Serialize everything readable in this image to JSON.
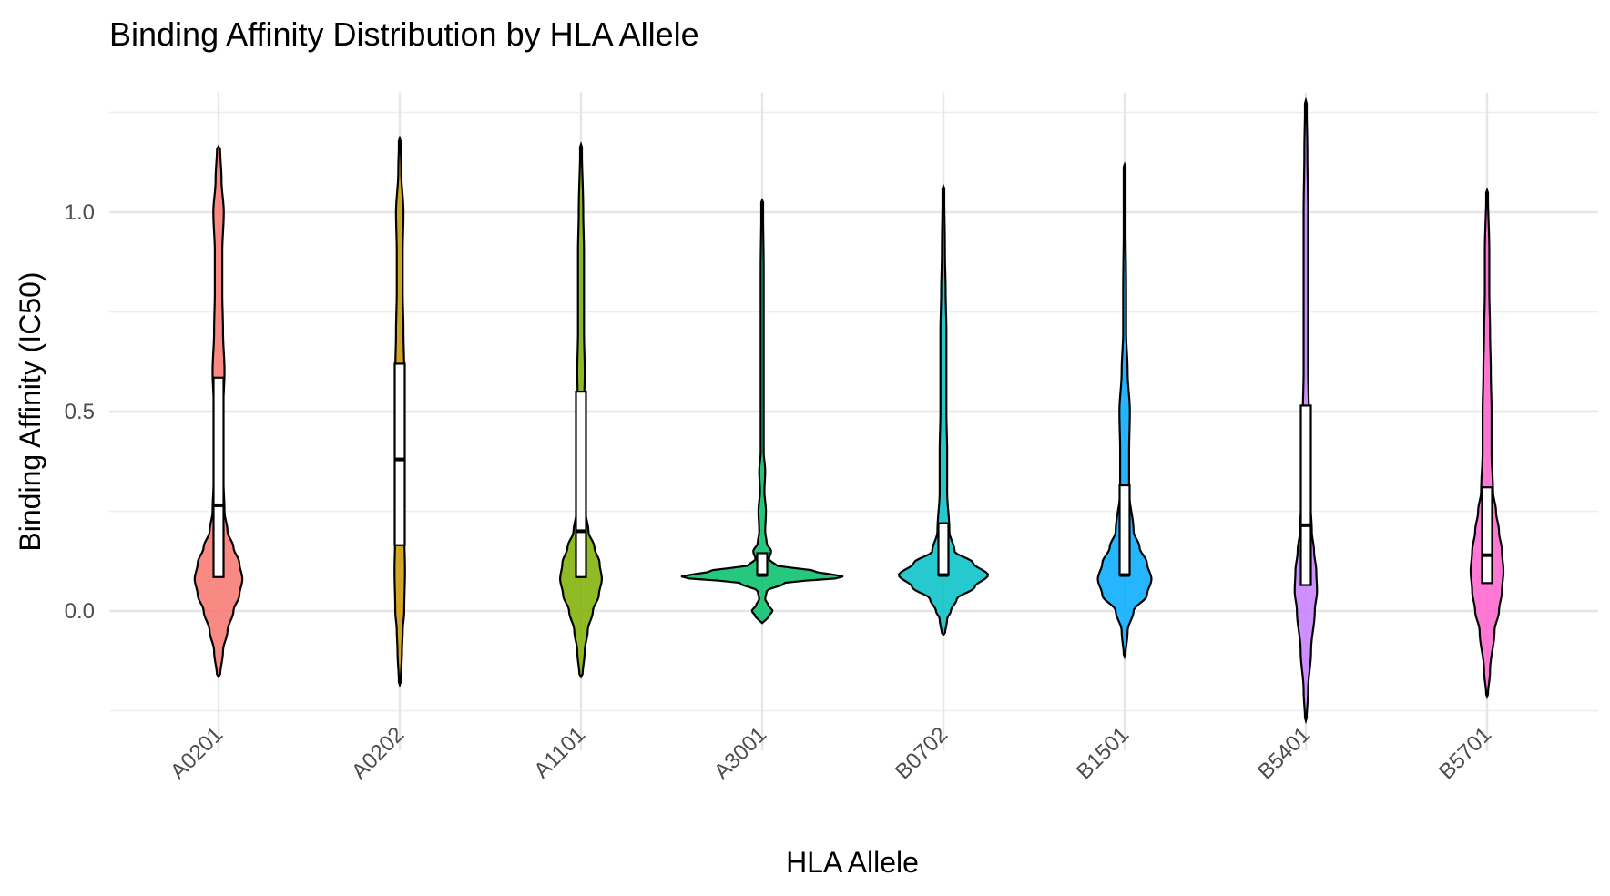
{
  "chart_data": {
    "type": "violin",
    "title": "Binding Affinity Distribution by HLA Allele",
    "xlabel": "HLA Allele",
    "ylabel": "Binding Affinity (IC50)",
    "ylim": [
      -0.35,
      1.35
    ],
    "yticks": [
      0.0,
      0.5,
      1.0
    ],
    "ytick_labels": [
      "0.0",
      "0.5",
      "1.0"
    ],
    "grid": true,
    "categories": [
      "A0201",
      "A0202",
      "A1101",
      "A3001",
      "B0702",
      "B1501",
      "B5401",
      "B5701"
    ],
    "colors": [
      "#F8766D",
      "#CD9600",
      "#7CAE00",
      "#00BE67",
      "#00BFC4",
      "#00A9FF",
      "#C77CFF",
      "#FF61CC"
    ],
    "series": [
      {
        "category": "A0201",
        "violin_min": -0.165,
        "violin_max": 1.165,
        "box": {
          "q1": 0.085,
          "median": 0.265,
          "q3": 0.585
        },
        "density": [
          [
            -0.165,
            0.002
          ],
          [
            -0.1,
            0.006
          ],
          [
            -0.05,
            0.012
          ],
          [
            0.0,
            0.02
          ],
          [
            0.04,
            0.028
          ],
          [
            0.08,
            0.032
          ],
          [
            0.12,
            0.028
          ],
          [
            0.16,
            0.02
          ],
          [
            0.2,
            0.012
          ],
          [
            0.25,
            0.008
          ],
          [
            0.35,
            0.006
          ],
          [
            0.5,
            0.006
          ],
          [
            0.6,
            0.008
          ],
          [
            0.7,
            0.006
          ],
          [
            0.8,
            0.005
          ],
          [
            0.9,
            0.005
          ],
          [
            1.0,
            0.007
          ],
          [
            1.08,
            0.004
          ],
          [
            1.165,
            0.002
          ]
        ]
      },
      {
        "category": "A0202",
        "violin_min": -0.185,
        "violin_max": 1.185,
        "box": {
          "q1": 0.165,
          "median": 0.38,
          "q3": 0.62
        },
        "density": [
          [
            -0.185,
            0.001
          ],
          [
            -0.1,
            0.003
          ],
          [
            -0.05,
            0.004
          ],
          [
            0.0,
            0.006
          ],
          [
            0.1,
            0.007
          ],
          [
            0.2,
            0.006
          ],
          [
            0.3,
            0.005
          ],
          [
            0.4,
            0.005
          ],
          [
            0.5,
            0.005
          ],
          [
            0.6,
            0.006
          ],
          [
            0.7,
            0.005
          ],
          [
            0.8,
            0.004
          ],
          [
            0.9,
            0.004
          ],
          [
            1.0,
            0.005
          ],
          [
            1.1,
            0.002
          ],
          [
            1.185,
            0.001
          ]
        ]
      },
      {
        "category": "A1101",
        "violin_min": -0.165,
        "violin_max": 1.17,
        "box": {
          "q1": 0.085,
          "median": 0.2,
          "q3": 0.55
        },
        "density": [
          [
            -0.165,
            0.002
          ],
          [
            -0.1,
            0.005
          ],
          [
            -0.05,
            0.009
          ],
          [
            0.0,
            0.016
          ],
          [
            0.04,
            0.024
          ],
          [
            0.08,
            0.028
          ],
          [
            0.12,
            0.025
          ],
          [
            0.16,
            0.018
          ],
          [
            0.2,
            0.01
          ],
          [
            0.25,
            0.006
          ],
          [
            0.35,
            0.004
          ],
          [
            0.5,
            0.004
          ],
          [
            0.6,
            0.005
          ],
          [
            0.7,
            0.004
          ],
          [
            0.8,
            0.004
          ],
          [
            0.9,
            0.004
          ],
          [
            1.0,
            0.003
          ],
          [
            1.17,
            0.001
          ]
        ]
      },
      {
        "category": "A3001",
        "violin_min": -0.03,
        "violin_max": 1.03,
        "box": {
          "q1": 0.09,
          "median": 0.09,
          "q3": 0.145
        },
        "density": [
          [
            -0.03,
            0.002
          ],
          [
            -0.01,
            0.01
          ],
          [
            0.0,
            0.014
          ],
          [
            0.015,
            0.008
          ],
          [
            0.03,
            0.004
          ],
          [
            0.05,
            0.006
          ],
          [
            0.07,
            0.03
          ],
          [
            0.085,
            0.11
          ],
          [
            0.1,
            0.07
          ],
          [
            0.115,
            0.018
          ],
          [
            0.13,
            0.009
          ],
          [
            0.15,
            0.012
          ],
          [
            0.17,
            0.006
          ],
          [
            0.2,
            0.004
          ],
          [
            0.25,
            0.005
          ],
          [
            0.3,
            0.003
          ],
          [
            0.35,
            0.004
          ],
          [
            0.4,
            0.002
          ],
          [
            0.5,
            0.002
          ],
          [
            0.6,
            0.002
          ],
          [
            0.7,
            0.002
          ],
          [
            0.85,
            0.002
          ],
          [
            1.03,
            0.001
          ]
        ]
      },
      {
        "category": "B0702",
        "violin_min": -0.06,
        "violin_max": 1.065,
        "box": {
          "q1": 0.09,
          "median": 0.09,
          "q3": 0.22
        },
        "density": [
          [
            -0.06,
            0.002
          ],
          [
            -0.02,
            0.005
          ],
          [
            0.0,
            0.01
          ],
          [
            0.03,
            0.018
          ],
          [
            0.06,
            0.042
          ],
          [
            0.09,
            0.06
          ],
          [
            0.12,
            0.04
          ],
          [
            0.15,
            0.015
          ],
          [
            0.2,
            0.008
          ],
          [
            0.3,
            0.005
          ],
          [
            0.4,
            0.005
          ],
          [
            0.5,
            0.004
          ],
          [
            0.6,
            0.004
          ],
          [
            0.7,
            0.004
          ],
          [
            0.8,
            0.003
          ],
          [
            0.9,
            0.002
          ],
          [
            1.065,
            0.001
          ]
        ]
      },
      {
        "category": "B1501",
        "violin_min": -0.115,
        "violin_max": 1.12,
        "box": {
          "q1": 0.09,
          "median": 0.09,
          "q3": 0.315
        },
        "density": [
          [
            -0.115,
            0.001
          ],
          [
            -0.05,
            0.004
          ],
          [
            0.0,
            0.012
          ],
          [
            0.04,
            0.03
          ],
          [
            0.08,
            0.036
          ],
          [
            0.12,
            0.03
          ],
          [
            0.16,
            0.02
          ],
          [
            0.2,
            0.012
          ],
          [
            0.3,
            0.006
          ],
          [
            0.4,
            0.006
          ],
          [
            0.5,
            0.007
          ],
          [
            0.6,
            0.004
          ],
          [
            0.7,
            0.002
          ],
          [
            0.8,
            0.002
          ],
          [
            1.0,
            0.001
          ],
          [
            1.12,
            0.001
          ]
        ]
      },
      {
        "category": "B5401",
        "violin_min": -0.275,
        "violin_max": 1.28,
        "box": {
          "q1": 0.065,
          "median": 0.215,
          "q3": 0.515
        },
        "density": [
          [
            -0.275,
            0.001
          ],
          [
            -0.2,
            0.003
          ],
          [
            -0.1,
            0.007
          ],
          [
            0.0,
            0.012
          ],
          [
            0.05,
            0.015
          ],
          [
            0.1,
            0.014
          ],
          [
            0.15,
            0.011
          ],
          [
            0.2,
            0.008
          ],
          [
            0.3,
            0.005
          ],
          [
            0.4,
            0.004
          ],
          [
            0.5,
            0.004
          ],
          [
            0.6,
            0.003
          ],
          [
            0.8,
            0.003
          ],
          [
            1.0,
            0.003
          ],
          [
            1.15,
            0.002
          ],
          [
            1.28,
            0.001
          ]
        ]
      },
      {
        "category": "B5701",
        "violin_min": -0.215,
        "violin_max": 1.055,
        "box": {
          "q1": 0.07,
          "median": 0.14,
          "q3": 0.31
        },
        "density": [
          [
            -0.215,
            0.001
          ],
          [
            -0.15,
            0.004
          ],
          [
            -0.05,
            0.01
          ],
          [
            0.0,
            0.016
          ],
          [
            0.05,
            0.02
          ],
          [
            0.1,
            0.022
          ],
          [
            0.15,
            0.02
          ],
          [
            0.2,
            0.016
          ],
          [
            0.25,
            0.012
          ],
          [
            0.3,
            0.008
          ],
          [
            0.4,
            0.006
          ],
          [
            0.5,
            0.006
          ],
          [
            0.6,
            0.005
          ],
          [
            0.7,
            0.004
          ],
          [
            0.8,
            0.003
          ],
          [
            0.9,
            0.003
          ],
          [
            1.055,
            0.001
          ]
        ]
      }
    ]
  }
}
